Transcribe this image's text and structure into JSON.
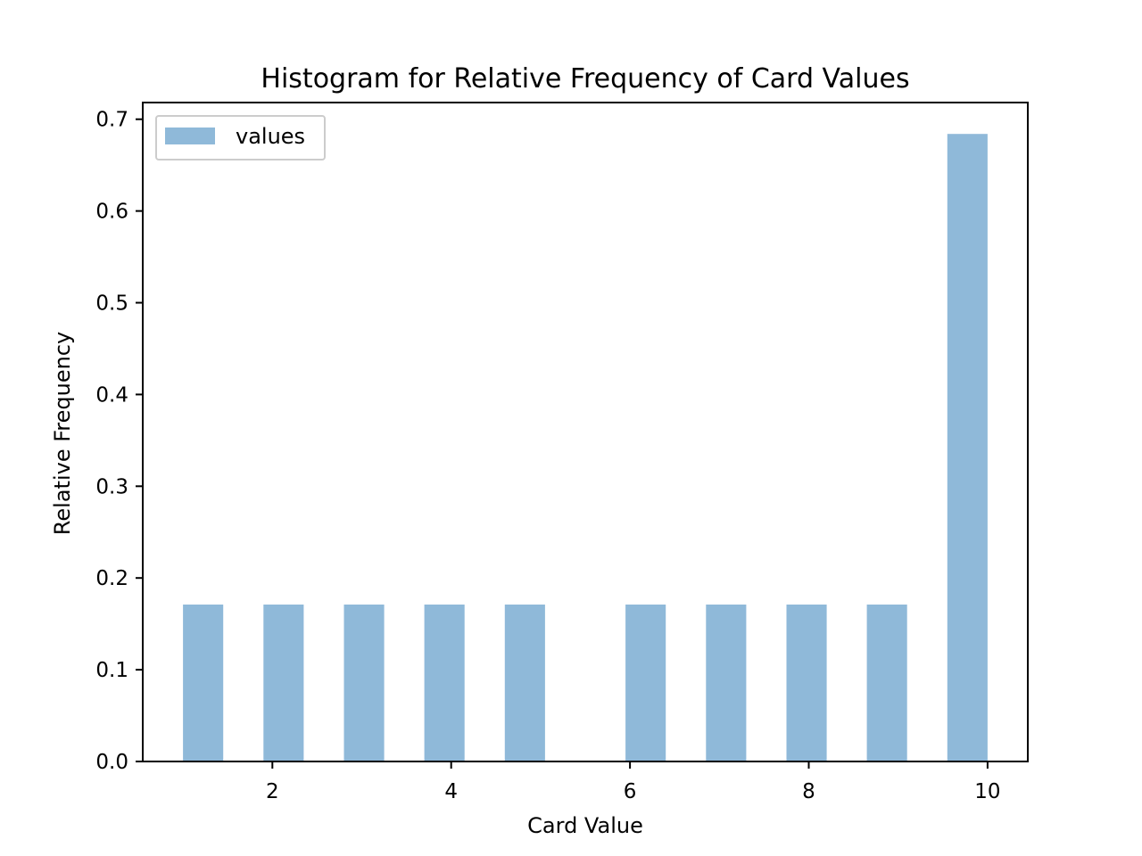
{
  "chart_data": {
    "type": "bar",
    "title": "Histogram for Relative Frequency of Card Values",
    "xlabel": "Card Value",
    "ylabel": "Relative Frequency",
    "bins": [
      {
        "x0": 1.0,
        "x1": 1.45,
        "value": 0.171
      },
      {
        "x0": 1.9,
        "x1": 2.35,
        "value": 0.171
      },
      {
        "x0": 2.8,
        "x1": 3.25,
        "value": 0.171
      },
      {
        "x0": 3.7,
        "x1": 4.15,
        "value": 0.171
      },
      {
        "x0": 4.6,
        "x1": 5.05,
        "value": 0.171
      },
      {
        "x0": 5.95,
        "x1": 6.4,
        "value": 0.171
      },
      {
        "x0": 6.85,
        "x1": 7.3,
        "value": 0.171
      },
      {
        "x0": 7.75,
        "x1": 8.2,
        "value": 0.171
      },
      {
        "x0": 8.65,
        "x1": 9.1,
        "value": 0.171
      },
      {
        "x0": 9.55,
        "x1": 10.0,
        "value": 0.684
      }
    ],
    "series": [
      {
        "name": "values",
        "color": "#8fb9d9"
      }
    ],
    "xlim": [
      0.55,
      10.45
    ],
    "ylim": [
      0.0,
      0.7182
    ],
    "xticks": [
      2,
      4,
      6,
      8,
      10
    ],
    "xtick_labels": [
      "2",
      "4",
      "6",
      "8",
      "10"
    ],
    "yticks": [
      0.0,
      0.1,
      0.2,
      0.3,
      0.4,
      0.5,
      0.6,
      0.7
    ],
    "ytick_labels": [
      "0.0",
      "0.1",
      "0.2",
      "0.3",
      "0.4",
      "0.5",
      "0.6",
      "0.7"
    ],
    "grid": false,
    "legend_position": "top-left"
  }
}
